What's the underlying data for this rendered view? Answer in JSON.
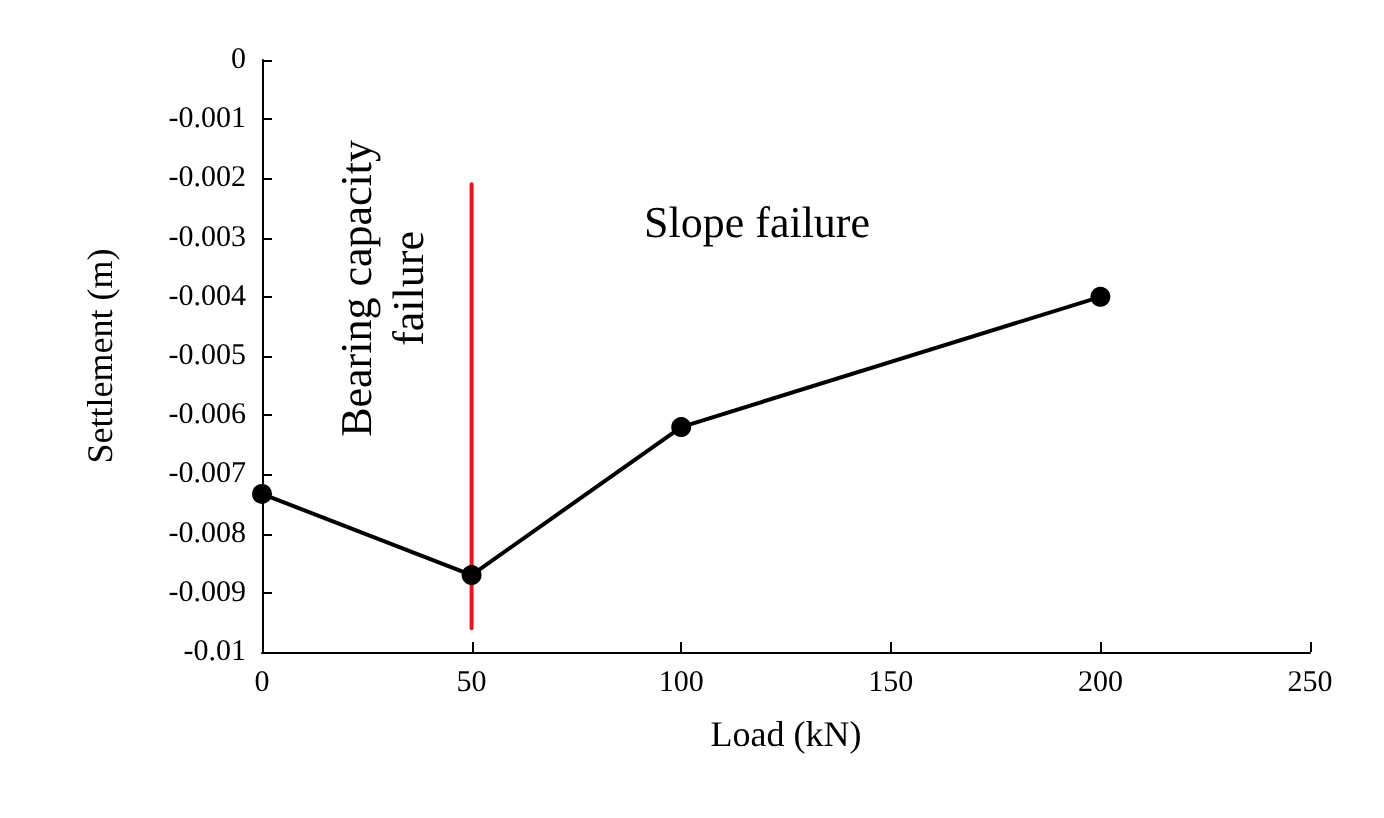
{
  "chart_data": {
    "type": "line",
    "xlabel": "Load (kN)",
    "ylabel": "Settlement (m)",
    "x": [
      0,
      50,
      100,
      200
    ],
    "series": [
      {
        "color": "#000000",
        "values": [
          -0.00733,
          -0.0087,
          -0.0062,
          -0.004
        ],
        "marker": "circle"
      },
      {
        "color": "#e8141e",
        "x": [
          50,
          50
        ],
        "values": [
          -0.0021,
          -0.0096
        ],
        "marker": "none"
      }
    ],
    "xlim": [
      0,
      250
    ],
    "xticks": [
      0,
      50,
      100,
      150,
      200,
      250
    ],
    "ylim": [
      -0.01,
      0
    ],
    "yticks": [
      0,
      -0.001,
      -0.002,
      -0.003,
      -0.004,
      -0.005,
      -0.006,
      -0.007,
      -0.008,
      -0.009,
      -0.01
    ],
    "annotations": [
      "Bearing capacity\nfailure",
      "Slope failure"
    ],
    "grid": false,
    "line_style": "solid"
  }
}
